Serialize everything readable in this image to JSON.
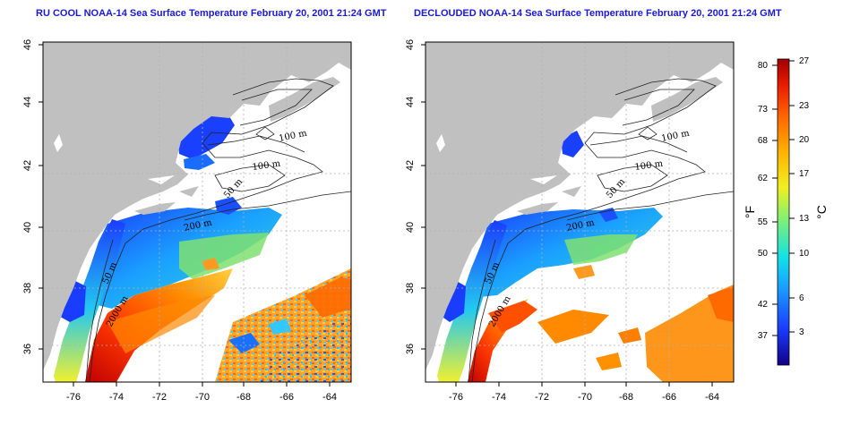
{
  "panels": [
    {
      "title": "RU COOL NOAA-14 Sea Surface Temperature February 20, 2001 21:24 GMT",
      "contour_labels": [
        "100 m",
        "100 m",
        "50 m",
        "200 m",
        "50 m",
        "2000 m"
      ]
    },
    {
      "title": "DECLOUDED NOAA-14 Sea Surface Temperature February 20, 2001 21:24 GMT",
      "contour_labels": [
        "100 m",
        "100 m",
        "50 m",
        "200 m",
        "50 m",
        "2000 m"
      ]
    }
  ],
  "axes": {
    "x_ticks": [
      "-76",
      "-74",
      "-72",
      "-70",
      "-68",
      "-66",
      "-64"
    ],
    "y_ticks": [
      "46",
      "44",
      "42",
      "40",
      "38",
      "36"
    ]
  },
  "colorbar": {
    "fahrenheit_unit": "°F",
    "celsius_unit": "°C",
    "fahrenheit_ticks": [
      "80",
      "73",
      "68",
      "62",
      "55",
      "50",
      "42",
      "37"
    ],
    "celsius_ticks": [
      "27",
      "23",
      "20",
      "17",
      "13",
      "10",
      "6",
      "3"
    ],
    "colors": [
      "#12008a",
      "#1a3cff",
      "#1a9cff",
      "#12e0e8",
      "#7af07a",
      "#f0f020",
      "#ffb000",
      "#ff6000",
      "#e81800",
      "#a00000"
    ]
  },
  "colors": {
    "land": "#c0c0c0",
    "ocean_missing": "#ffffff",
    "title": "#1a1ad0",
    "grid": "#b0b0b0"
  }
}
